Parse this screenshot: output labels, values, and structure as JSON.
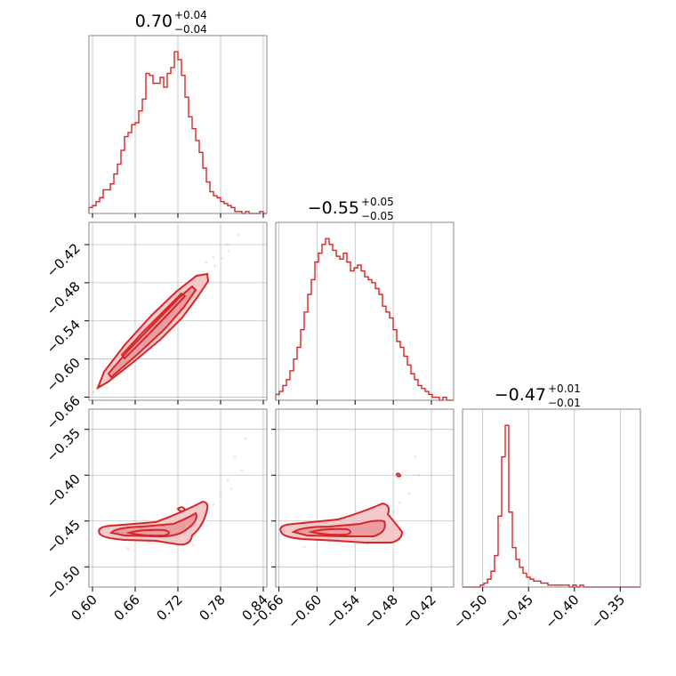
{
  "chart_data": {
    "type": "corner",
    "color": "#d62728",
    "parameters": [
      {
        "median": "0.70",
        "plus": "+0.04",
        "minus": "−0.04",
        "range": [
          0.595,
          0.845
        ],
        "ticks": [
          {
            "v": 0.6,
            "label": "0.60"
          },
          {
            "v": 0.66,
            "label": "0.66"
          },
          {
            "v": 0.72,
            "label": "0.72"
          },
          {
            "v": 0.78,
            "label": "0.78"
          },
          {
            "v": 0.84,
            "label": "0.84"
          }
        ],
        "hist_edges_range": [
          0.595,
          0.845
        ],
        "hist_counts": [
          3,
          4,
          6,
          8,
          12,
          12,
          15,
          20,
          25,
          32,
          39,
          41,
          45,
          46,
          52,
          58,
          71,
          70,
          66,
          66,
          69,
          64,
          71,
          74,
          82,
          78,
          70,
          59,
          49,
          43,
          37,
          31,
          23,
          16,
          11,
          9,
          8,
          6,
          5,
          4,
          3,
          1,
          1,
          0,
          1,
          0,
          0,
          0,
          1,
          0
        ]
      },
      {
        "median": "−0.55",
        "plus": "+0.05",
        "minus": "−0.05",
        "range": [
          -0.665,
          -0.385
        ],
        "ticks": [
          {
            "v": -0.66,
            "label": "−0.66"
          },
          {
            "v": -0.6,
            "label": "−0.60"
          },
          {
            "v": -0.54,
            "label": "−0.54"
          },
          {
            "v": -0.48,
            "label": "−0.48"
          },
          {
            "v": -0.42,
            "label": "−0.42"
          }
        ],
        "hist_edges_range": [
          -0.665,
          -0.385
        ],
        "hist_counts": [
          2,
          3,
          5,
          7,
          10,
          14,
          18,
          24,
          30,
          36,
          41,
          47,
          50,
          53,
          55,
          53,
          51,
          49,
          48,
          50,
          47,
          44,
          45,
          46,
          44,
          42,
          41,
          40,
          38,
          36,
          32,
          30,
          28,
          24,
          20,
          18,
          15,
          12,
          9,
          7,
          5,
          4,
          3,
          2,
          1,
          1,
          0,
          1,
          0,
          0
        ]
      },
      {
        "median": "−0.47",
        "plus": "+0.01",
        "minus": "−0.01",
        "range": [
          -0.522,
          -0.328
        ],
        "ticks": [
          {
            "v": -0.5,
            "label": "−0.50"
          },
          {
            "v": -0.45,
            "label": "−0.45"
          },
          {
            "v": -0.4,
            "label": "−0.40"
          },
          {
            "v": -0.35,
            "label": "−0.35"
          }
        ],
        "hist_edges_range": [
          -0.522,
          -0.328
        ],
        "hist_counts": [
          0,
          0,
          0,
          0,
          0,
          1,
          2,
          4,
          8,
          16,
          36,
          66,
          82,
          38,
          20,
          14,
          10,
          7,
          5,
          4,
          3,
          3,
          2,
          2,
          1,
          1,
          1,
          1,
          1,
          1,
          0,
          1,
          0,
          1,
          0,
          0,
          0,
          0,
          0,
          0,
          0,
          0,
          0,
          0,
          0,
          0,
          0,
          0,
          0,
          0
        ]
      }
    ],
    "pairs": [
      {
        "row": 1,
        "col": 0,
        "ylim": [
          -0.665,
          -0.385
        ],
        "points": [
          [
            0.602,
            -0.652
          ],
          [
            0.612,
            -0.643
          ],
          [
            0.622,
            -0.632
          ],
          [
            0.632,
            -0.621
          ],
          [
            0.642,
            -0.609
          ],
          [
            0.652,
            -0.597
          ],
          [
            0.662,
            -0.585
          ],
          [
            0.672,
            -0.573
          ],
          [
            0.682,
            -0.561
          ],
          [
            0.692,
            -0.549
          ],
          [
            0.702,
            -0.537
          ],
          [
            0.712,
            -0.525
          ],
          [
            0.722,
            -0.513
          ],
          [
            0.732,
            -0.501
          ],
          [
            0.742,
            -0.489
          ],
          [
            0.752,
            -0.477
          ],
          [
            0.762,
            -0.465
          ],
          [
            0.772,
            -0.453
          ],
          [
            0.782,
            -0.441
          ],
          [
            0.792,
            -0.43
          ],
          [
            0.66,
            -0.575
          ],
          [
            0.7,
            -0.545
          ],
          [
            0.735,
            -0.485
          ],
          [
            0.76,
            -0.448
          ],
          [
            0.79,
            -0.42
          ],
          [
            0.805,
            -0.405
          ],
          [
            0.62,
            -0.645
          ],
          [
            0.69,
            -0.56
          ],
          [
            0.745,
            -0.47
          ],
          [
            0.77,
            -0.44
          ]
        ]
      },
      {
        "row": 2,
        "col": 0,
        "ylim": [
          -0.522,
          -0.328
        ],
        "points": [
          [
            0.64,
            -0.463
          ],
          [
            0.67,
            -0.458
          ],
          [
            0.7,
            -0.456
          ],
          [
            0.73,
            -0.449
          ],
          [
            0.76,
            -0.439
          ],
          [
            0.78,
            -0.42
          ],
          [
            0.79,
            -0.405
          ],
          [
            0.8,
            -0.38
          ],
          [
            0.81,
            -0.395
          ],
          [
            0.72,
            -0.468
          ],
          [
            0.68,
            -0.474
          ],
          [
            0.65,
            -0.48
          ],
          [
            0.75,
            -0.455
          ],
          [
            0.77,
            -0.432
          ],
          [
            0.795,
            -0.415
          ],
          [
            0.815,
            -0.36
          ],
          [
            0.705,
            -0.462
          ],
          [
            0.742,
            -0.476
          ],
          [
            0.66,
            -0.466
          ]
        ]
      },
      {
        "row": 2,
        "col": 1,
        "ylim": [
          -0.522,
          -0.328
        ],
        "points": [
          [
            -0.64,
            -0.465
          ],
          [
            -0.6,
            -0.46
          ],
          [
            -0.56,
            -0.458
          ],
          [
            -0.52,
            -0.456
          ],
          [
            -0.5,
            -0.45
          ],
          [
            -0.48,
            -0.44
          ],
          [
            -0.47,
            -0.43
          ],
          [
            -0.455,
            -0.42
          ],
          [
            -0.44,
            -0.4
          ],
          [
            -0.445,
            -0.38
          ],
          [
            -0.475,
            -0.402
          ],
          [
            -0.52,
            -0.475
          ],
          [
            -0.58,
            -0.472
          ],
          [
            -0.62,
            -0.478
          ],
          [
            -0.49,
            -0.47
          ],
          [
            -0.51,
            -0.445
          ]
        ]
      }
    ]
  }
}
